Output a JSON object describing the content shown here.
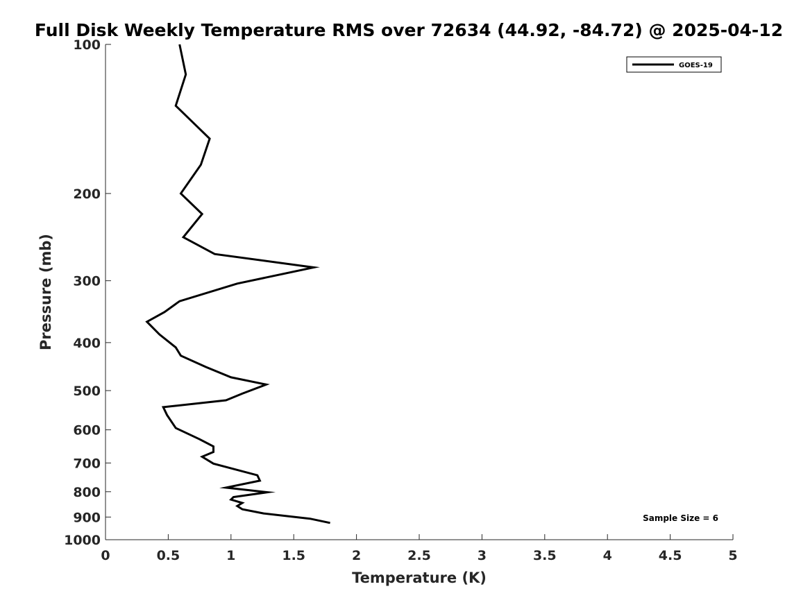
{
  "chart_data": {
    "type": "line",
    "title": "Full Disk Weekly Temperature RMS over 72634 (44.92, -84.72) @ 2025-04-12",
    "xlabel": "Temperature (K)",
    "ylabel": "Pressure (mb)",
    "xlim": [
      0,
      5
    ],
    "ylim": [
      100,
      1000
    ],
    "y_scale": "log",
    "y_reversed": true,
    "x_ticks": [
      "0",
      "0.5",
      "1",
      "1.5",
      "2",
      "2.5",
      "3",
      "3.5",
      "4",
      "4.5",
      "5"
    ],
    "y_ticks": [
      "100",
      "200",
      "300",
      "400",
      "500",
      "600",
      "700",
      "800",
      "900",
      "1000"
    ],
    "grid": false,
    "legend_position": "top-right",
    "series": [
      {
        "name": "GOES-19",
        "color": "#000000",
        "x": [
          0.59,
          0.64,
          0.56,
          0.83,
          0.76,
          0.6,
          0.77,
          0.62,
          0.87,
          1.66,
          1.05,
          0.59,
          0.47,
          0.33,
          0.43,
          0.56,
          0.6,
          0.8,
          1.0,
          1.28,
          1.09,
          0.96,
          0.46,
          0.49,
          0.56,
          0.75,
          0.86,
          0.86,
          0.77,
          0.86,
          1.21,
          1.23,
          0.96,
          1.29,
          1.02,
          1.0,
          1.09,
          1.05,
          1.09,
          1.26,
          1.63,
          1.79
        ],
        "y": [
          100,
          115,
          133,
          155,
          175,
          200,
          220,
          245,
          265,
          282,
          304,
          330,
          347,
          363,
          385,
          409,
          425,
          448,
          470,
          486,
          507,
          523,
          540,
          560,
          595,
          627,
          648,
          665,
          680,
          702,
          741,
          760,
          785,
          802,
          820,
          830,
          843,
          855,
          868,
          885,
          907,
          925
        ]
      }
    ],
    "annotations": [
      {
        "text": "Sample Size = 6"
      }
    ]
  }
}
